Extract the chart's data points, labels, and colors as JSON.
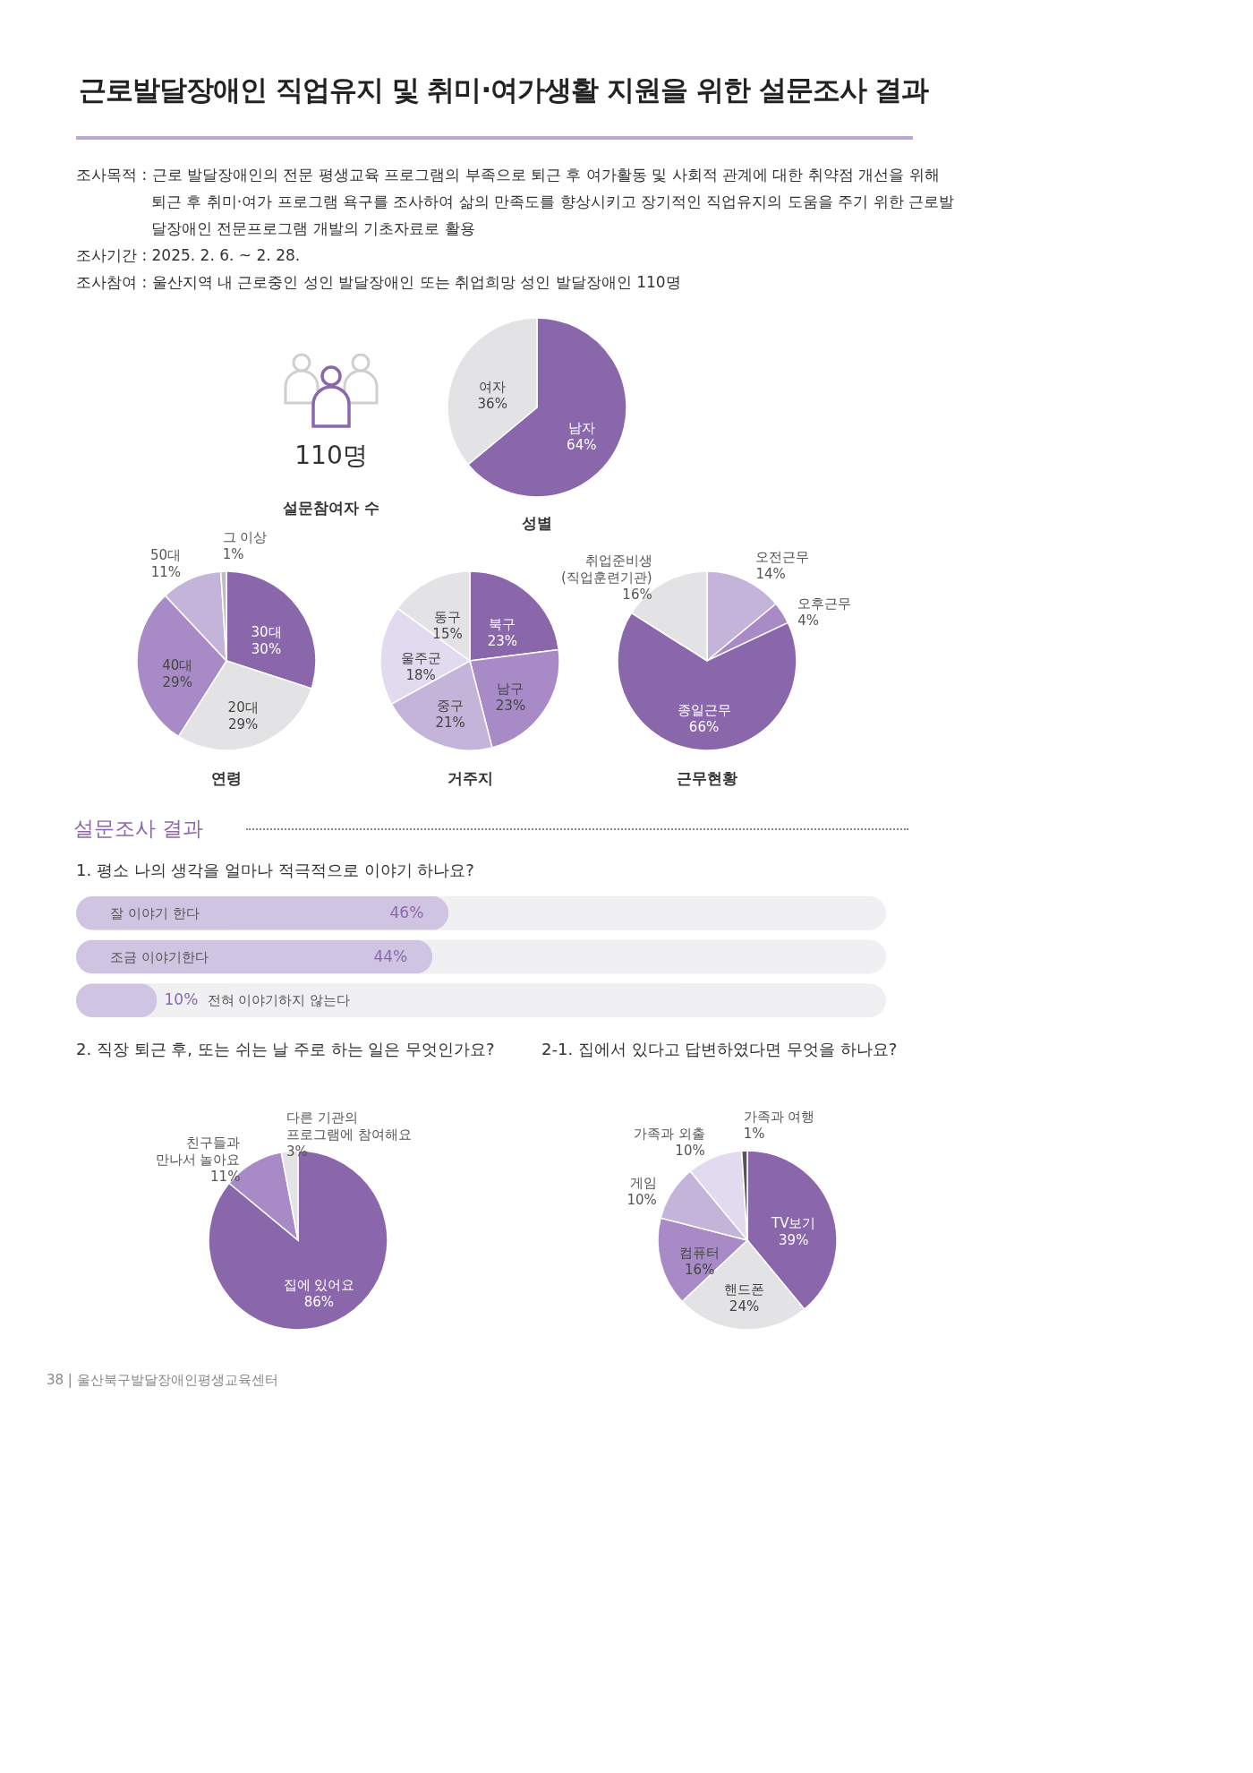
{
  "chart_data": [
    {
      "type": "other",
      "title": "근로발달장애인 직업유지 및 취미·여가생활 지원을 위한 설문조사 결과",
      "annotations": [
        "조사목적 : 근로 발달장애인의 전문 평생교육 프로그램의 부족으로 퇴근 후 여가활동 및 사회적 관계에 대한 취약점 개선을 위해 퇴근 후 취미·여가 프로그램 욕구를 조사하여 삶의 만족도를 향상시키고 장기적인 직업유지의 도움을 주기 위한 근로발달장애인 전문프로그램 개발의 기초자료로 활용",
        "조사기간 : 2025. 2. 6. ~ 2. 28.",
        "조사참여 : 울산지역 내 근로중인 성인 발달장애인 또는 취업희망 성인 발달장애인 110명",
        "110명",
        "설문참여자 수",
        "설문조사 결과",
        "38 | 울산북구발달장애인평생교육센터"
      ]
    },
    {
      "type": "pie",
      "title": "성별",
      "categories": [
        "남자",
        "여자"
      ],
      "values": [
        64,
        36
      ],
      "value_labels": [
        "64%",
        "36%"
      ],
      "colors": [
        "#8a67ab",
        "#e3e3e5"
      ]
    },
    {
      "type": "pie",
      "title": "연령",
      "categories": [
        "30대",
        "20대",
        "40대",
        "50대",
        "그 이상"
      ],
      "values": [
        30,
        29,
        29,
        11,
        1
      ],
      "value_labels": [
        "30%",
        "29%",
        "29%",
        "11%",
        "1%"
      ],
      "colors": [
        "#8a67ab",
        "#e3e3e5",
        "#a88bc6",
        "#c4b4da",
        "#bdbdbd"
      ]
    },
    {
      "type": "pie",
      "title": "거주지",
      "categories": [
        "북구",
        "남구",
        "중구",
        "울주군",
        "동구"
      ],
      "values": [
        23,
        23,
        21,
        18,
        15
      ],
      "value_labels": [
        "23%",
        "23%",
        "21%",
        "18%",
        "15%"
      ],
      "colors": [
        "#8a67ab",
        "#a88bc6",
        "#c4b4da",
        "#e2daee",
        "#e3e3e5"
      ]
    },
    {
      "type": "pie",
      "title": "근무현황",
      "categories": [
        "오전근무",
        "오후근무",
        "종일근무",
        "취업준비생 (직업훈련기관)"
      ],
      "values": [
        14,
        4,
        66,
        16
      ],
      "value_labels": [
        "14%",
        "4%",
        "66%",
        "16%"
      ],
      "colors": [
        "#c4b4da",
        "#a88bc6",
        "#8a67ab",
        "#e3e3e5"
      ]
    },
    {
      "type": "bar",
      "orientation": "horizontal",
      "title": "1. 평소 나의 생각을 얼마나 적극적으로 이야기 하나요?",
      "categories": [
        "잘 이야기 한다",
        "조금 이야기한다",
        "전혀 이야기하지 않는다"
      ],
      "values": [
        46,
        44,
        10
      ],
      "value_labels": [
        "46%",
        "44%",
        "10%"
      ],
      "color": "#d0c4e3",
      "xlim": [
        0,
        100
      ],
      "tick_labels": false
    },
    {
      "type": "pie",
      "title": "2. 직장 퇴근 후, 또는 쉬는 날 주로 하는 일은 무엇인가요?",
      "categories": [
        "집에 있어요",
        "친구들과 만나서 놀아요",
        "다른 기관의 프로그램에 참여해요"
      ],
      "values": [
        86,
        11,
        3
      ],
      "value_labels": [
        "86%",
        "11%",
        "3%"
      ],
      "colors": [
        "#8a67ab",
        "#a88bc6",
        "#e3e3e5"
      ]
    },
    {
      "type": "pie",
      "title": "2-1. 집에서 있다고 답변하였다면 무엇을 하나요?",
      "categories": [
        "TV보기",
        "핸드폰",
        "컴퓨터",
        "게임",
        "가족과 외출",
        "가족과 여행"
      ],
      "values": [
        39,
        24,
        16,
        10,
        10,
        1
      ],
      "value_labels": [
        "39%",
        "24%",
        "16%",
        "10%",
        "10%",
        "1%"
      ],
      "colors": [
        "#8a67ab",
        "#e3e3e5",
        "#a88bc6",
        "#c4b4da",
        "#e2daee",
        "#555555"
      ]
    }
  ]
}
